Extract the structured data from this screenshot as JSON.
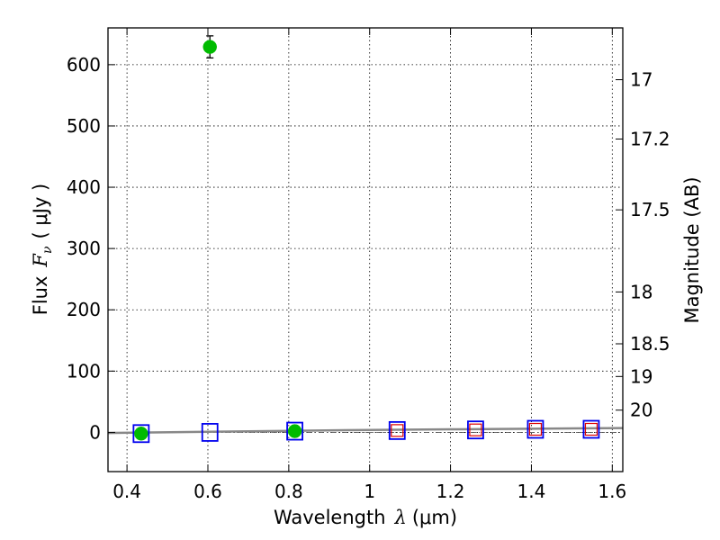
{
  "chart_data": {
    "type": "scatter",
    "xlabel_prefix": "Wavelength",
    "xlabel_math": "λ",
    "xlabel_unit": "(μm)",
    "ylabel_prefix": "Flux",
    "ylabel_math": "F",
    "ylabel_math_sub": "ν",
    "ylabel_unit": "( μJy )",
    "y2label": "Magnitude (AB)",
    "xlim": [
      0.353,
      1.626
    ],
    "ylim": [
      -64,
      660
    ],
    "xticks": [
      {
        "value": 0.4,
        "label": "0.4"
      },
      {
        "value": 0.6,
        "label": "0.6"
      },
      {
        "value": 0.8,
        "label": "0.8"
      },
      {
        "value": 1.0,
        "label": "1"
      },
      {
        "value": 1.2,
        "label": "1.2"
      },
      {
        "value": 1.4,
        "label": "1.4"
      },
      {
        "value": 1.6,
        "label": "1.6"
      }
    ],
    "yticks": [
      {
        "value": 0,
        "label": "0"
      },
      {
        "value": 100,
        "label": "100"
      },
      {
        "value": 200,
        "label": "200"
      },
      {
        "value": 300,
        "label": "300"
      },
      {
        "value": 400,
        "label": "400"
      },
      {
        "value": 500,
        "label": "500"
      },
      {
        "value": 600,
        "label": "600"
      }
    ],
    "y2ticks": [
      {
        "mag": 17,
        "label": "17"
      },
      {
        "mag": 17.2,
        "label": "17.2"
      },
      {
        "mag": 17.5,
        "label": "17.5"
      },
      {
        "mag": 18,
        "label": "18"
      },
      {
        "mag": 18.5,
        "label": "18.5"
      },
      {
        "mag": 19,
        "label": "19"
      },
      {
        "mag": 20,
        "label": "20"
      }
    ],
    "grid": true,
    "detections": {
      "color": "#00bb00",
      "points": [
        {
          "x": 0.435,
          "y": -2,
          "err": 0
        },
        {
          "x": 0.605,
          "y": 629,
          "err": 18
        },
        {
          "x": 0.815,
          "y": 2,
          "err": 0
        }
      ]
    },
    "upper_limits": {
      "color": "#0000ee",
      "points": [
        {
          "x": 0.435,
          "y": -2
        },
        {
          "x": 0.605,
          "y": 0
        },
        {
          "x": 0.815,
          "y": 2
        },
        {
          "x": 1.068,
          "y": 3
        },
        {
          "x": 1.262,
          "y": 4
        },
        {
          "x": 1.41,
          "y": 5
        },
        {
          "x": 1.548,
          "y": 5
        }
      ]
    },
    "model_markers": {
      "color": "#dd0000",
      "points": [
        {
          "x": 1.068,
          "y": 3
        },
        {
          "x": 1.262,
          "y": 4
        },
        {
          "x": 1.41,
          "y": 5
        },
        {
          "x": 1.548,
          "y": 5
        }
      ]
    },
    "model_curve": {
      "color": "#888888",
      "points": [
        [
          0.353,
          -1
        ],
        [
          0.6,
          1
        ],
        [
          0.8,
          2.5
        ],
        [
          1.0,
          4
        ],
        [
          1.2,
          5
        ],
        [
          1.4,
          6
        ],
        [
          1.626,
          7
        ]
      ]
    },
    "zero_line": {
      "y": 0,
      "color": "#555555"
    }
  }
}
